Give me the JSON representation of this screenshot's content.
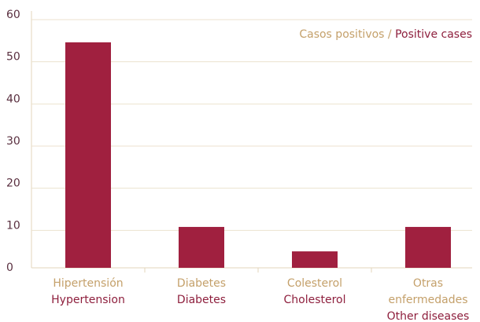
{
  "chart_data": {
    "type": "bar",
    "legend": {
      "name": "Casos positivos",
      "name_en": "Positive cases"
    },
    "categories": [
      "Hipertensión",
      "Diabetes",
      "Colesterol",
      "Otras enfermedades"
    ],
    "categories_en": [
      "Hypertension",
      "Diabetes",
      "Cholesterol",
      "Other diseases"
    ],
    "values": [
      53.5,
      9.7,
      3.9,
      9.7
    ],
    "color": "#a0203f",
    "ylim": [
      0,
      60
    ],
    "yticks": [
      0,
      10,
      20,
      30,
      40,
      50,
      60
    ],
    "grid": true
  }
}
